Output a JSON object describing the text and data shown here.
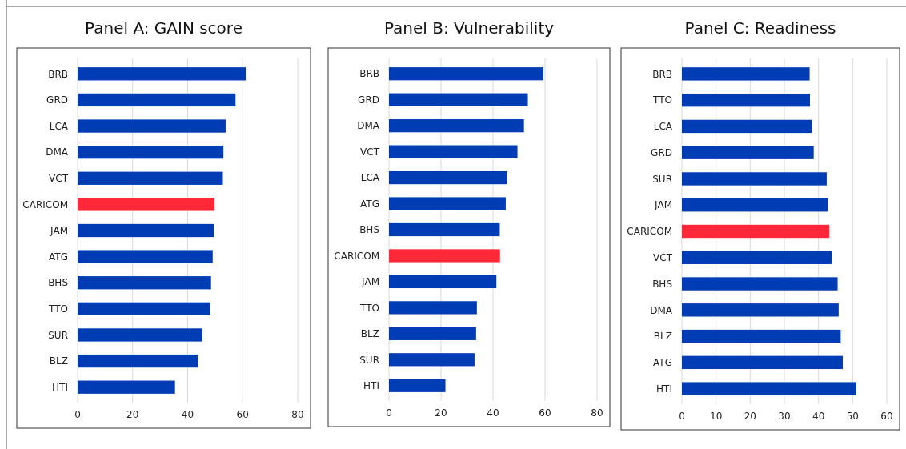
{
  "chart_data": [
    {
      "type": "bar",
      "title": "Panel A: GAIN score",
      "orientation": "horizontal",
      "categories": [
        "BRB",
        "GRD",
        "LCA",
        "DMA",
        "VCT",
        "CARICOM",
        "JAM",
        "ATG",
        "BHS",
        "TTO",
        "SUR",
        "BLZ",
        "HTI"
      ],
      "values": [
        61.1,
        57.4,
        53.8,
        53.0,
        52.8,
        49.8,
        49.5,
        49.1,
        48.5,
        48.2,
        45.3,
        43.7,
        35.4
      ],
      "colors": [
        "#003cb4",
        "#003cb4",
        "#003cb4",
        "#003cb4",
        "#003cb4",
        "#ff2838",
        "#003cb4",
        "#003cb4",
        "#003cb4",
        "#003cb4",
        "#003cb4",
        "#003cb4",
        "#003cb4"
      ],
      "xlim": [
        0,
        80
      ],
      "xticks": [
        0,
        20,
        40,
        60,
        80
      ],
      "grid": "x"
    },
    {
      "type": "bar",
      "title": "Panel B: Vulnerability",
      "orientation": "horizontal",
      "categories": [
        "BRB",
        "GRD",
        "DMA",
        "VCT",
        "LCA",
        "ATG",
        "BHS",
        "CARICOM",
        "JAM",
        "TTO",
        "BLZ",
        "SUR",
        "HTI"
      ],
      "values": [
        59.4,
        53.4,
        51.9,
        49.4,
        45.4,
        44.9,
        42.6,
        42.7,
        41.3,
        33.8,
        33.5,
        32.9,
        21.7
      ],
      "colors": [
        "#003cb4",
        "#003cb4",
        "#003cb4",
        "#003cb4",
        "#003cb4",
        "#003cb4",
        "#003cb4",
        "#ff2838",
        "#003cb4",
        "#003cb4",
        "#003cb4",
        "#003cb4",
        "#003cb4"
      ],
      "xlim": [
        0,
        80
      ],
      "xticks": [
        0,
        20,
        40,
        60,
        80
      ],
      "grid": "x"
    },
    {
      "type": "bar",
      "title": "Panel C: Readiness",
      "orientation": "horizontal",
      "categories": [
        "BRB",
        "TTO",
        "LCA",
        "GRD",
        "SUR",
        "JAM",
        "CARICOM",
        "VCT",
        "BHS",
        "DMA",
        "BLZ",
        "ATG",
        "HTI"
      ],
      "values": [
        37.4,
        37.5,
        38.0,
        38.6,
        42.4,
        42.7,
        43.2,
        43.9,
        45.6,
        45.9,
        46.5,
        47.1,
        51.1
      ],
      "colors": [
        "#003cb4",
        "#003cb4",
        "#003cb4",
        "#003cb4",
        "#003cb4",
        "#003cb4",
        "#ff2838",
        "#003cb4",
        "#003cb4",
        "#003cb4",
        "#003cb4",
        "#003cb4",
        "#003cb4"
      ],
      "xlim": [
        0,
        60
      ],
      "xticks": [
        0,
        10,
        20,
        30,
        40,
        50,
        60
      ],
      "grid": "x"
    }
  ]
}
